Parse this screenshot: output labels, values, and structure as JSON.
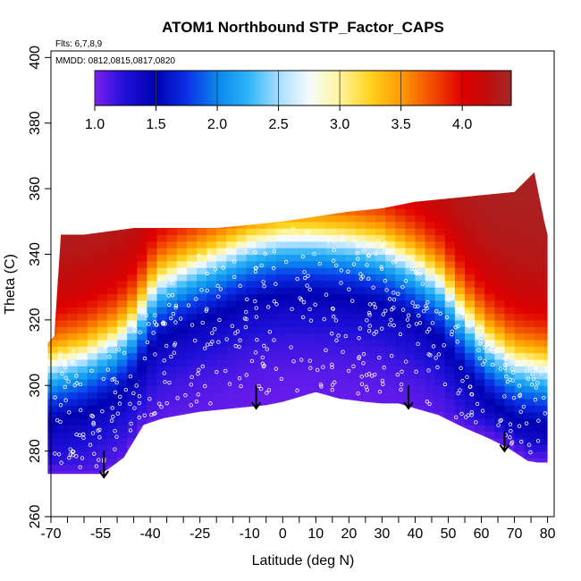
{
  "chart_data": {
    "type": "heatmap",
    "title": "ATOM1 Northbound STP_Factor_CAPS",
    "flights_note": "Flts: 6,7,8,9",
    "dates_note": "MMDD: 0812,0815,0817,0820",
    "xlabel": "Latitude (deg N)",
    "ylabel": "Theta (C)",
    "xlim": [
      -70,
      82
    ],
    "ylim": [
      260,
      402
    ],
    "x_ticks": [
      -70,
      -55,
      -40,
      -25,
      -10,
      0,
      10,
      20,
      30,
      40,
      50,
      60,
      70,
      80
    ],
    "x_minor_step": 5,
    "y_ticks": [
      260,
      280,
      300,
      320,
      340,
      360,
      380,
      400
    ],
    "colorbar": {
      "min": 1.0,
      "max": 4.4,
      "ticks": [
        1.0,
        1.5,
        2.0,
        2.5,
        3.0,
        3.5,
        4.0
      ],
      "stops": [
        {
          "v": 1.0,
          "c": "#7a1ff0"
        },
        {
          "v": 1.25,
          "c": "#1e10d8"
        },
        {
          "v": 1.5,
          "c": "#0000b0"
        },
        {
          "v": 1.75,
          "c": "#0a30e6"
        },
        {
          "v": 2.0,
          "c": "#0a86ee"
        },
        {
          "v": 2.25,
          "c": "#2cb4f6"
        },
        {
          "v": 2.5,
          "c": "#a8ddff"
        },
        {
          "v": 2.75,
          "c": "#f4fbff"
        },
        {
          "v": 3.0,
          "c": "#fff59a"
        },
        {
          "v": 3.25,
          "c": "#ffd21e"
        },
        {
          "v": 3.5,
          "c": "#ff9a00"
        },
        {
          "v": 3.75,
          "c": "#f24e00"
        },
        {
          "v": 4.0,
          "c": "#e00000"
        },
        {
          "v": 4.2,
          "c": "#c20c0c"
        },
        {
          "v": 4.4,
          "c": "#a02a2a"
        }
      ]
    },
    "field": {
      "lat_bins": [
        -71,
        -68,
        -65,
        -62,
        -59,
        -56,
        -53,
        -50,
        -47,
        -44,
        -41,
        -38,
        -35,
        -32,
        -29,
        -26,
        -23,
        -20,
        -17,
        -14,
        -11,
        -8,
        -5,
        -2,
        1,
        4,
        7,
        10,
        13,
        16,
        19,
        22,
        25,
        28,
        31,
        34,
        37,
        40,
        43,
        46,
        49,
        52,
        55,
        58,
        61,
        64,
        67,
        70,
        73,
        76,
        79
      ],
      "lower_boundary": [
        [
          -71,
          273
        ],
        [
          -55,
          273
        ],
        [
          -52,
          275
        ],
        [
          -48,
          278
        ],
        [
          -42,
          288
        ],
        [
          -36,
          290
        ],
        [
          -25,
          292
        ],
        [
          -15,
          293
        ],
        [
          -5,
          294
        ],
        [
          0,
          295
        ],
        [
          5,
          296.5
        ],
        [
          10,
          298
        ],
        [
          17,
          296
        ],
        [
          25,
          295
        ],
        [
          30,
          294.5
        ],
        [
          35,
          294.5
        ],
        [
          40,
          293
        ],
        [
          47,
          291
        ],
        [
          55,
          287
        ],
        [
          62,
          284
        ],
        [
          68,
          281
        ],
        [
          74,
          277
        ],
        [
          77,
          276.5
        ],
        [
          80,
          276.5
        ]
      ],
      "upper_boundary": [
        [
          -71,
          313
        ],
        [
          -69,
          315
        ],
        [
          -67,
          346
        ],
        [
          -60,
          346
        ],
        [
          -45,
          348
        ],
        [
          -30,
          348
        ],
        [
          -20,
          348
        ],
        [
          -10,
          349
        ],
        [
          0,
          350
        ],
        [
          10,
          351.5
        ],
        [
          20,
          353
        ],
        [
          30,
          354
        ],
        [
          40,
          356
        ],
        [
          50,
          357
        ],
        [
          60,
          358
        ],
        [
          70,
          359
        ],
        [
          76,
          365
        ],
        [
          77,
          360
        ],
        [
          79,
          350
        ],
        [
          80,
          346
        ]
      ],
      "value_model": {
        "description": "STP factor by latitude and theta",
        "tropopause_theta": [
          [
            -71,
            305
          ],
          [
            -60,
            308
          ],
          [
            -50,
            313
          ],
          [
            -45,
            318
          ],
          [
            -38,
            330
          ],
          [
            -30,
            334
          ],
          [
            -20,
            338
          ],
          [
            -10,
            342
          ],
          [
            0,
            344
          ],
          [
            10,
            344
          ],
          [
            20,
            343
          ],
          [
            30,
            341
          ],
          [
            40,
            336
          ],
          [
            48,
            330
          ],
          [
            55,
            320
          ],
          [
            62,
            312
          ],
          [
            70,
            306
          ],
          [
            80,
            304
          ]
        ]
      }
    },
    "arrows": [
      {
        "x": -54,
        "y_top": 280,
        "y_bottom": 272
      },
      {
        "x": -8,
        "y_top": 300,
        "y_bottom": 293
      },
      {
        "x": 38,
        "y_top": 300,
        "y_bottom": 293
      },
      {
        "x": 67,
        "y_top": 286,
        "y_bottom": 280
      }
    ]
  }
}
